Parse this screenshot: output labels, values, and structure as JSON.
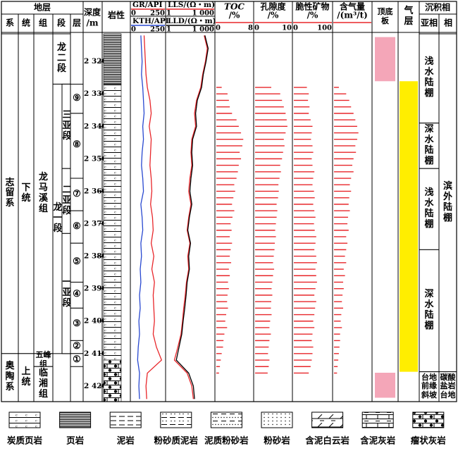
{
  "chart_data": {
    "type": "well-log",
    "header": {
      "strata": "地层",
      "system": "系",
      "series": "统",
      "formation": "组",
      "member": "段",
      "layer": "层",
      "depth": "深度",
      "depth_unit": "/m",
      "lithology": "岩性",
      "roof_floor": "顶底板",
      "gas_layer": "气层",
      "facies": "沉积相",
      "subfacies_h": "亚相",
      "facies_h": "相"
    },
    "ylim": [
      2311.5,
      2424.8
    ],
    "yticks": [
      {
        "value": 2320,
        "label": "2 320"
      },
      {
        "value": 2330,
        "label": "2 330"
      },
      {
        "value": 2340,
        "label": "2 340"
      },
      {
        "value": 2350,
        "label": "2 350"
      },
      {
        "value": 2360,
        "label": "2 360"
      },
      {
        "value": 2370,
        "label": "2 370"
      },
      {
        "value": 2380,
        "label": "2 380"
      },
      {
        "value": 2390,
        "label": "2 390"
      },
      {
        "value": 2400,
        "label": "2 400"
      },
      {
        "value": 2410,
        "label": "2 410"
      },
      {
        "value": 2420,
        "label": "2 420"
      }
    ],
    "strata": {
      "system": [
        {
          "label": "志留系",
          "top": 2311.5,
          "bottom": 2410
        },
        {
          "label": "奥陶系",
          "top": 2410,
          "bottom": 2424.8
        }
      ],
      "series": [
        {
          "label": "下统",
          "top": 2311.5,
          "bottom": 2410
        },
        {
          "label": "上统",
          "top": 2410,
          "bottom": 2424.8
        }
      ],
      "formation": [
        {
          "label": "龙马溪组",
          "top": 2311.5,
          "bottom": 2410
        },
        {
          "label": "五峰组",
          "top": 2410,
          "bottom": 2414
        },
        {
          "label": "临湘组",
          "top": 2414,
          "bottom": 2424.8
        }
      ],
      "member": [
        {
          "label": "龙二段",
          "top": 2311.5,
          "bottom": 2327
        },
        {
          "label": "龙一段",
          "top": 2327,
          "bottom": 2410
        }
      ],
      "submember": [
        {
          "label": "三亚段",
          "top": 2327,
          "bottom": 2353
        },
        {
          "label": "二亚段",
          "top": 2353,
          "bottom": 2373
        },
        {
          "label": "一亚段",
          "top": 2373,
          "bottom": 2410
        }
      ],
      "layer": [
        {
          "label": "⑨",
          "top": 2327,
          "bottom": 2336
        },
        {
          "label": "⑧",
          "top": 2336,
          "bottom": 2356
        },
        {
          "label": "⑦",
          "top": 2356,
          "bottom": 2366
        },
        {
          "label": "⑥",
          "top": 2366,
          "bottom": 2376
        },
        {
          "label": "⑤",
          "top": 2376,
          "bottom": 2388
        },
        {
          "label": "④",
          "top": 2388,
          "bottom": 2396
        },
        {
          "label": "③",
          "top": 2396,
          "bottom": 2406
        },
        {
          "label": "②",
          "top": 2406,
          "bottom": 2410
        },
        {
          "label": "①",
          "top": 2410,
          "bottom": 2414
        }
      ]
    },
    "lithology": [
      {
        "top": 2311.5,
        "bottom": 2327,
        "pattern": 1
      },
      {
        "top": 2327,
        "bottom": 2412,
        "pattern": 0
      },
      {
        "top": 2412,
        "bottom": 2424.8,
        "pattern": 8
      }
    ],
    "log_depths": [
      2312,
      2316,
      2320,
      2324,
      2328,
      2332,
      2336,
      2340,
      2344,
      2348,
      2352,
      2356,
      2360,
      2364,
      2368,
      2372,
      2376,
      2380,
      2384,
      2388,
      2392,
      2396,
      2400,
      2404,
      2408,
      2412,
      2416,
      2420,
      2424
    ],
    "bar_depths": [
      2328,
      2330,
      2332,
      2334,
      2336,
      2338,
      2340,
      2342,
      2344,
      2346,
      2348,
      2350,
      2352,
      2354,
      2356,
      2358,
      2360,
      2362,
      2364,
      2366,
      2368,
      2370,
      2372,
      2374,
      2376,
      2378,
      2380,
      2382,
      2384,
      2386,
      2388,
      2390,
      2392,
      2394,
      2396,
      2398,
      2400,
      2402,
      2404,
      2406,
      2408,
      2410,
      2412,
      2414,
      2416
    ],
    "tracks": [
      {
        "kind": "curve",
        "series": [
          {
            "name": "GR/API",
            "color": "#e8262a",
            "xlim": [
              0,
              250
            ],
            "xticks": [
              0,
              250
            ],
            "values": [
              95,
              100,
              105,
              110,
              120,
              140,
              150,
              135,
              150,
              145,
              140,
              150,
              155,
              145,
              160,
              165,
              150,
              170,
              155,
              175,
              165,
              170,
              175,
              165,
              190,
              230,
              120,
              110,
              115
            ]
          },
          {
            "name": "KTH/API",
            "color": "#2848d0",
            "xlim": [
              0,
              250
            ],
            "xticks": [
              0,
              250
            ],
            "values": [
              70,
              75,
              80,
              75,
              85,
              90,
              95,
              85,
              90,
              80,
              75,
              85,
              90,
              70,
              80,
              85,
              70,
              75,
              65,
              70,
              60,
              65,
              55,
              60,
              50,
              45,
              60,
              55,
              60
            ]
          }
        ]
      },
      {
        "kind": "curve",
        "series": [
          {
            "name": "LLS/(Ω・m)",
            "color": "#e8262a",
            "log": true,
            "xlim": [
              1,
              1000
            ],
            "xticks": [
              1,
              {
                "value": 1000,
                "label": "1 000"
              }
            ],
            "values": [
              250,
              400,
              300,
              200,
              150,
              80,
              60,
              70,
              40,
              35,
              40,
              30,
              25,
              35,
              25,
              20,
              30,
              22,
              25,
              18,
              15,
              12,
              10,
              8,
              5,
              3,
              20,
              40,
              50
            ]
          },
          {
            "name": "LLD/(Ω・m)",
            "color": "#000000",
            "log": true,
            "xlim": [
              1,
              1000
            ],
            "xticks": [
              1,
              {
                "value": 1000,
                "label": "1 000"
              }
            ],
            "values": [
              280,
              450,
              330,
              220,
              170,
              90,
              70,
              80,
              45,
              40,
              45,
              35,
              30,
              40,
              28,
              22,
              33,
              25,
              28,
              20,
              17,
              14,
              11,
              9,
              6,
              4,
              25,
              50,
              60
            ]
          }
        ]
      },
      {
        "kind": "bar",
        "name": "TOC",
        "unit": "/%",
        "italic": true,
        "color": "#e8262a",
        "xlim": [
          0,
          8
        ],
        "xticks": [
          0,
          8
        ],
        "values": [
          1.2,
          2.5,
          2.8,
          3.0,
          3.5,
          4.5,
          5.0,
          5.5,
          6.0,
          5.8,
          5.2,
          5.5,
          5.0,
          4.8,
          4.5,
          4.0,
          4.2,
          3.8,
          3.5,
          4.0,
          3.6,
          3.2,
          3.4,
          3.0,
          3.5,
          3.2,
          3.0,
          3.3,
          2.8,
          3.0,
          2.6,
          2.8,
          2.5,
          2.4,
          2.6,
          2.2,
          2.0,
          2.4,
          1.8,
          1.6,
          1.5,
          1.2,
          1.0,
          0.8,
          0.6
        ]
      },
      {
        "kind": "bar",
        "name": "孔隙度",
        "unit": "/%",
        "color": "#e8262a",
        "xlim": [
          0,
          10
        ],
        "xticks": [
          0,
          10
        ],
        "values": [
          4.5,
          7.0,
          7.5,
          8.0,
          8.5,
          8.8,
          9.0,
          8.5,
          8.0,
          8.2,
          7.8,
          7.5,
          7.0,
          7.2,
          6.8,
          6.5,
          6.6,
          6.4,
          6.0,
          6.2,
          6.0,
          5.8,
          5.6,
          5.8,
          5.5,
          5.4,
          5.2,
          5.0,
          5.3,
          5.0,
          4.8,
          4.6,
          4.8,
          4.5,
          4.4,
          4.6,
          4.2,
          4.0,
          4.4,
          4.0,
          3.8,
          3.6,
          4.0,
          3.8,
          3.5
        ]
      },
      {
        "kind": "bar",
        "name": "脆性矿物",
        "unit": "/%",
        "color": "#e8262a",
        "xlim": [
          0,
          100
        ],
        "xticks": [
          0,
          100
        ],
        "values": [
          35,
          40,
          38,
          42,
          40,
          45,
          50,
          48,
          46,
          50,
          52,
          48,
          50,
          55,
          52,
          50,
          54,
          56,
          52,
          55,
          58,
          54,
          56,
          60,
          58,
          55,
          60,
          62,
          58,
          60,
          62,
          58,
          55,
          60,
          57,
          55,
          52,
          55,
          50,
          48,
          52,
          50,
          48,
          45,
          40
        ]
      },
      {
        "kind": "bar",
        "name": "含气量",
        "unit": "/(m³/t)",
        "color": "#e8262a",
        "xlim": [
          0,
          6
        ],
        "values": [
          0.8,
          2.0,
          2.5,
          2.8,
          3.2,
          3.5,
          3.8,
          4.0,
          3.8,
          3.5,
          3.6,
          3.2,
          3.0,
          3.2,
          2.8,
          2.6,
          2.8,
          2.5,
          2.4,
          2.6,
          2.3,
          2.2,
          2.4,
          2.0,
          2.2,
          2.0,
          1.8,
          2.0,
          1.6,
          1.8,
          1.5,
          1.6,
          1.4,
          1.3,
          1.5,
          1.2,
          1.1,
          1.3,
          1.0,
          1.0,
          0.9,
          0.8,
          0.7,
          0.6,
          0.5
        ]
      }
    ],
    "roof_floor": [
      {
        "top": 2312.5,
        "bottom": 2326.1,
        "color": "#f4a6b8"
      },
      {
        "top": 2415.9,
        "bottom": 2423.6,
        "color": "#f4a6b8"
      }
    ],
    "gas_layer": [
      {
        "top": 2326.1,
        "bottom": 2415.6,
        "color": "#ffee00"
      }
    ],
    "subfacies": [
      {
        "label": "浅水陆棚",
        "top": 2311.5,
        "bottom": 2339
      },
      {
        "label": "深水陆棚",
        "top": 2339,
        "bottom": 2353
      },
      {
        "label": "浅水陆棚",
        "top": 2353,
        "bottom": 2378
      },
      {
        "label": "深水陆棚",
        "top": 2378,
        "bottom": 2415.6
      },
      {
        "label": "台地前缘斜坡",
        "top": 2415.6,
        "bottom": 2424.8
      }
    ],
    "facies": [
      {
        "label": "滨外陆棚",
        "top": 2311.5,
        "bottom": 2415.6
      },
      {
        "label": "碳酸盐岩台地",
        "top": 2415.6,
        "bottom": 2424.8
      }
    ],
    "legend": [
      {
        "label": "炭质页岩"
      },
      {
        "label": "页岩"
      },
      {
        "label": "泥岩"
      },
      {
        "label": "粉砂质泥岩"
      },
      {
        "label": "泥质粉砂岩"
      },
      {
        "label": "粉砂岩"
      },
      {
        "label": "含泥白云岩"
      },
      {
        "label": "含泥灰岩"
      },
      {
        "label": "瘤状灰岩"
      }
    ]
  }
}
